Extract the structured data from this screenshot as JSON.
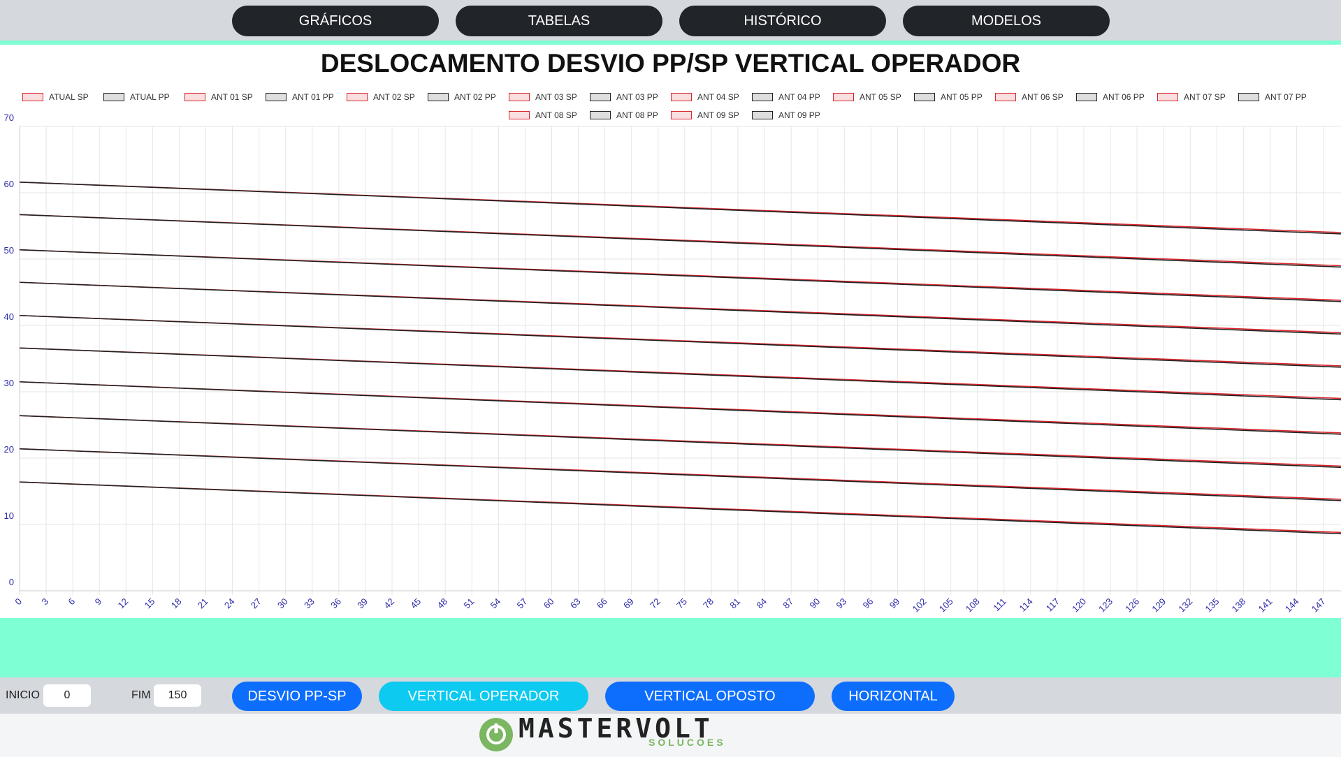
{
  "nav": [
    "GRÁFICOS",
    "TABELAS",
    "HISTÓRICO",
    "MODELOS"
  ],
  "chart_data": {
    "type": "line",
    "title": "DESLOCAMENTO DESVIO PP/SP VERTICAL OPERADOR",
    "x": [
      0,
      149
    ],
    "xlim": [
      0,
      149
    ],
    "xticks": [
      0,
      3,
      6,
      9,
      12,
      15,
      18,
      21,
      24,
      27,
      30,
      33,
      36,
      39,
      42,
      45,
      48,
      51,
      54,
      57,
      60,
      63,
      66,
      69,
      72,
      75,
      78,
      81,
      84,
      87,
      90,
      93,
      96,
      99,
      102,
      105,
      108,
      111,
      114,
      117,
      120,
      123,
      126,
      129,
      132,
      135,
      138,
      141,
      144,
      147
    ],
    "ylim": [
      0,
      70
    ],
    "yticks": [
      0,
      10,
      20,
      30,
      40,
      50,
      60,
      70
    ],
    "grid": true,
    "series": [
      {
        "name": "ATUAL SP",
        "color": "#d9262c",
        "values": [
          61.6,
          54.0
        ]
      },
      {
        "name": "ATUAL PP",
        "color": "#222222",
        "values": [
          61.6,
          53.8
        ]
      },
      {
        "name": "ANT 01 SP",
        "color": "#d9262c",
        "values": [
          56.7,
          49.0
        ]
      },
      {
        "name": "ANT 01 PP",
        "color": "#222222",
        "values": [
          56.7,
          48.8
        ]
      },
      {
        "name": "ANT 02 SP",
        "color": "#d9262c",
        "values": [
          51.4,
          43.8
        ]
      },
      {
        "name": "ANT 02 PP",
        "color": "#222222",
        "values": [
          51.4,
          43.6
        ]
      },
      {
        "name": "ANT 03 SP",
        "color": "#d9262c",
        "values": [
          46.5,
          38.9
        ]
      },
      {
        "name": "ANT 03 PP",
        "color": "#222222",
        "values": [
          46.5,
          38.7
        ]
      },
      {
        "name": "ANT 04 SP",
        "color": "#d9262c",
        "values": [
          41.5,
          33.9
        ]
      },
      {
        "name": "ANT 04 PP",
        "color": "#222222",
        "values": [
          41.5,
          33.7
        ]
      },
      {
        "name": "ANT 05 SP",
        "color": "#d9262c",
        "values": [
          36.6,
          29.0
        ]
      },
      {
        "name": "ANT 05 PP",
        "color": "#222222",
        "values": [
          36.6,
          28.8
        ]
      },
      {
        "name": "ANT 06 SP",
        "color": "#d9262c",
        "values": [
          31.5,
          23.8
        ]
      },
      {
        "name": "ANT 06 PP",
        "color": "#222222",
        "values": [
          31.5,
          23.6
        ]
      },
      {
        "name": "ANT 07 SP",
        "color": "#d9262c",
        "values": [
          26.4,
          18.8
        ]
      },
      {
        "name": "ANT 07 PP",
        "color": "#222222",
        "values": [
          26.4,
          18.6
        ]
      },
      {
        "name": "ANT 08 SP",
        "color": "#d9262c",
        "values": [
          21.4,
          13.8
        ]
      },
      {
        "name": "ANT 08 PP",
        "color": "#222222",
        "values": [
          21.4,
          13.6
        ]
      },
      {
        "name": "ANT 09 SP",
        "color": "#d9262c",
        "values": [
          16.4,
          8.8
        ]
      },
      {
        "name": "ANT 09 PP",
        "color": "#222222",
        "values": [
          16.4,
          8.6
        ]
      }
    ]
  },
  "controls": {
    "inicio_label": "INICIO",
    "inicio_value": 0,
    "fim_label": "FIM",
    "fim_value": 150,
    "buttons": [
      "DESVIO PP-SP",
      "VERTICAL OPERADOR",
      "VERTICAL OPOSTO",
      "HORIZONTAL"
    ]
  },
  "logo": {
    "name": "MASTERVOLT",
    "tagline": "SOLUCOES"
  }
}
